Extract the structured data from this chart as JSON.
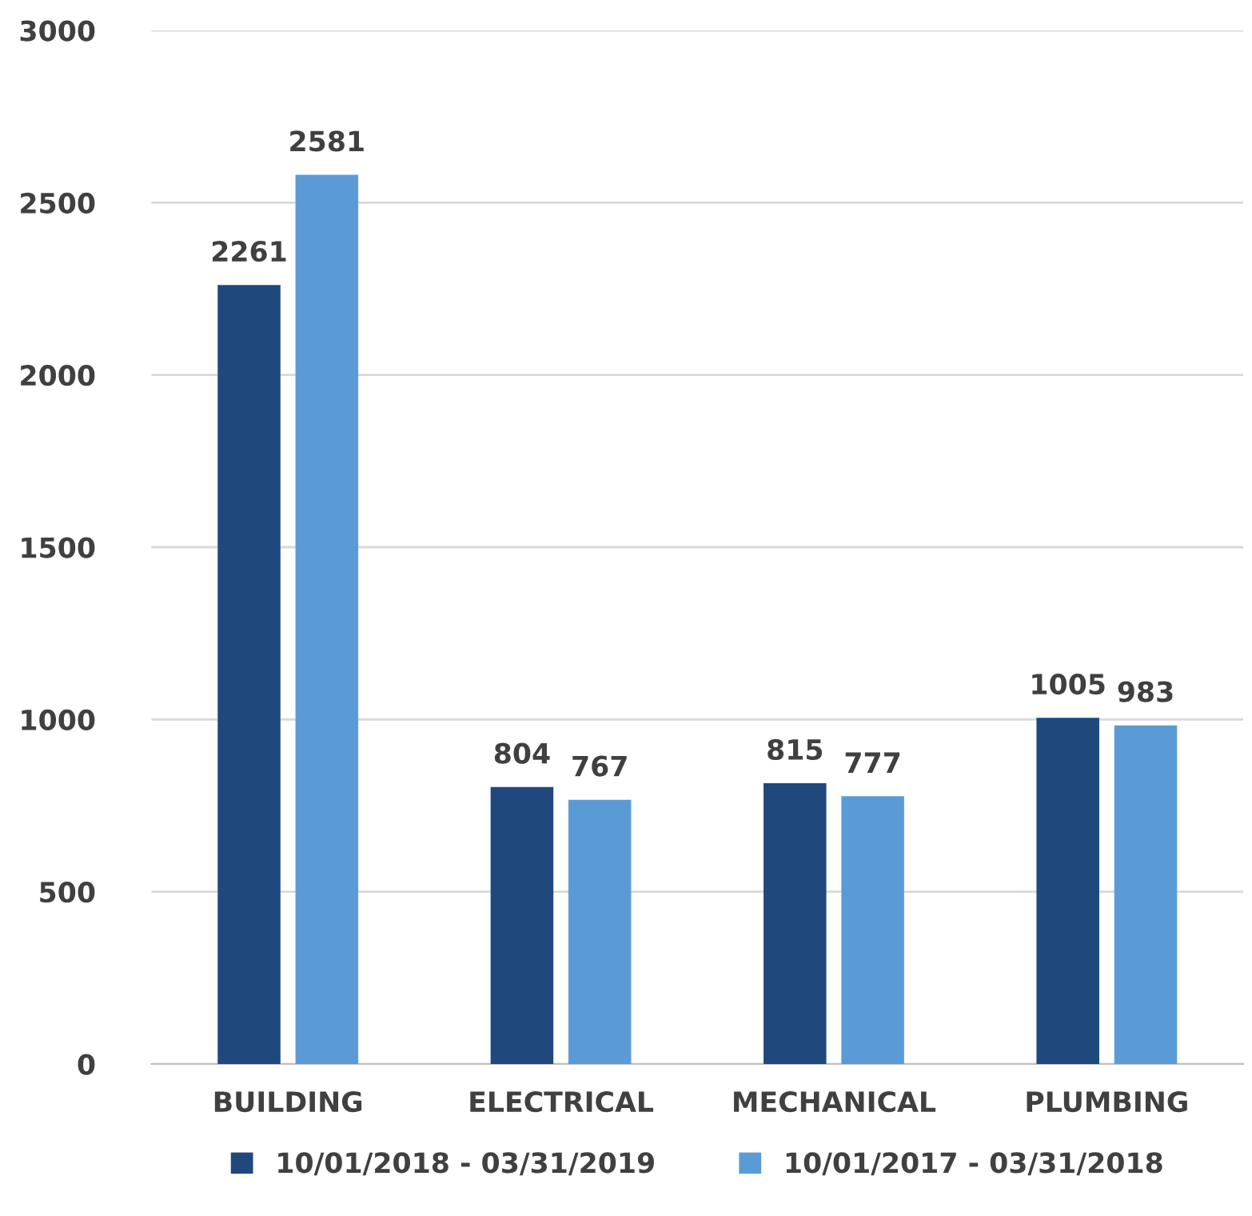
{
  "chart_data": {
    "type": "bar",
    "categories": [
      "BUILDING",
      "ELECTRICAL",
      "MECHANICAL",
      "PLUMBING"
    ],
    "series": [
      {
        "name": "10/01/2018 - 03/31/2019",
        "color": "#1f497d",
        "values": [
          2261,
          804,
          815,
          1005
        ]
      },
      {
        "name": "10/01/2017 - 03/31/2018",
        "color": "#5b9bd5",
        "values": [
          2581,
          767,
          777,
          983
        ]
      }
    ],
    "ylim": [
      0,
      3000
    ],
    "yticks": [
      0,
      500,
      1000,
      1500,
      2000,
      2500,
      3000
    ],
    "grid": "y",
    "legend": "bottom",
    "data_labels": true
  }
}
